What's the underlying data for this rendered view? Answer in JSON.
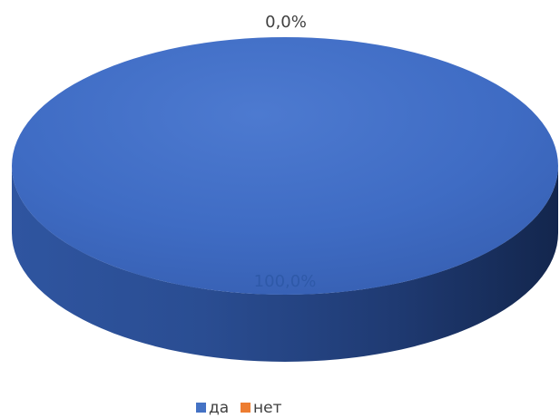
{
  "chart_data": {
    "type": "pie",
    "style": "3d",
    "categories": [
      "да",
      "нет"
    ],
    "values": [
      100.0,
      0.0
    ],
    "data_labels": [
      "100,0%",
      "0,0%"
    ],
    "colors": [
      "#4472C4",
      "#ED7D31"
    ],
    "label_colors": [
      "#2E59A8",
      "#404040"
    ],
    "legend": {
      "position": "bottom",
      "entries": [
        "да",
        "нет"
      ]
    }
  }
}
